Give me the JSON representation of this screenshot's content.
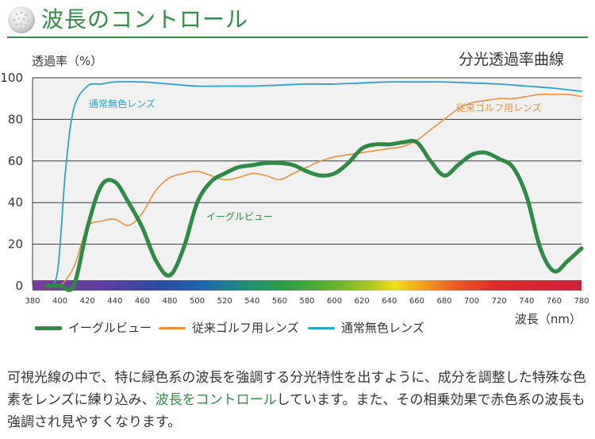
{
  "header": {
    "title": "波長のコントロール"
  },
  "chart_title": "分光透過率曲線",
  "y_unit": "透過率（%）",
  "chart_data": {
    "type": "line",
    "title": "分光透過率曲線",
    "xlabel": "波長（nm）",
    "ylabel": "透過率（%）",
    "xlim": [
      380,
      780
    ],
    "ylim": [
      0,
      100
    ],
    "x_ticks": [
      "380",
      "400",
      "420",
      "440",
      "460",
      "480",
      "500",
      "520",
      "540",
      "560",
      "580",
      "600",
      "620",
      "640",
      "660",
      "680",
      "700",
      "720",
      "740",
      "760",
      "780"
    ],
    "y_ticks": [
      "0",
      "20",
      "40",
      "60",
      "80",
      "100"
    ],
    "grid": true,
    "legend_position": "bottom",
    "series": [
      {
        "name": "イーグルビュー",
        "color": "#2e8b45",
        "x": [
          390,
          400,
          410,
          420,
          430,
          440,
          450,
          460,
          470,
          480,
          490,
          500,
          510,
          520,
          530,
          540,
          550,
          560,
          570,
          580,
          590,
          600,
          610,
          620,
          630,
          640,
          650,
          660,
          670,
          680,
          690,
          700,
          710,
          720,
          730,
          740,
          750,
          760,
          770,
          780
        ],
        "y": [
          0,
          0,
          0,
          28,
          48,
          50,
          40,
          28,
          12,
          5,
          18,
          40,
          50,
          54,
          57,
          58,
          59,
          59,
          58,
          55,
          53,
          54,
          59,
          66,
          68,
          68,
          69,
          69,
          60,
          53,
          58,
          63,
          64,
          61,
          57,
          43,
          18,
          7,
          12,
          18
        ]
      },
      {
        "name": "従来ゴルフ用レンズ",
        "color": "#e8923a",
        "x": [
          390,
          400,
          410,
          420,
          430,
          440,
          450,
          460,
          470,
          480,
          490,
          500,
          510,
          520,
          530,
          540,
          550,
          560,
          570,
          580,
          590,
          600,
          610,
          620,
          630,
          640,
          650,
          660,
          670,
          680,
          690,
          700,
          710,
          720,
          730,
          740,
          750,
          760,
          770,
          780
        ],
        "y": [
          0,
          0,
          9,
          28,
          31,
          32,
          29,
          35,
          46,
          52,
          54,
          55,
          53,
          51,
          52,
          54,
          53,
          51,
          54,
          57,
          60,
          62,
          63,
          64,
          65,
          66,
          67,
          70,
          75,
          80,
          85,
          88,
          89,
          90,
          90,
          91,
          92,
          92,
          92,
          91
        ]
      },
      {
        "name": "通常無色レンズ",
        "color": "#29a3cc",
        "x": [
          390,
          398,
          404,
          410,
          420,
          430,
          440,
          460,
          480,
          500,
          520,
          540,
          560,
          580,
          600,
          620,
          640,
          660,
          680,
          700,
          720,
          740,
          760,
          780
        ],
        "y": [
          0,
          6,
          55,
          85,
          96,
          97,
          98,
          98,
          97,
          96,
          96,
          96,
          96.5,
          97,
          97,
          97.5,
          98,
          98,
          98,
          97.5,
          97,
          96,
          95,
          93.5
        ]
      }
    ],
    "series_labels": [
      {
        "text": "通常無色レンズ",
        "series": 2
      },
      {
        "text": "従来ゴルフ用レンズ",
        "series": 1
      },
      {
        "text": "イーグルビュー",
        "series": 0
      }
    ]
  },
  "legend": [
    {
      "label": "イーグルビュー",
      "color": "#2e8b45"
    },
    {
      "label": "従来ゴルフ用レンズ",
      "color": "#e8923a"
    },
    {
      "label": "通常無色レンズ",
      "color": "#29a3cc"
    }
  ],
  "description": {
    "part1": "可視光線の中で、特に緑色系の波長を強調する分光特性を出すように、成分を調整した特殊な色素をレンズに練り込み、",
    "highlight": "波長をコントロール",
    "part2": "しています。また、その相乗効果で赤色系の波長も強調され見やすくなります。"
  }
}
